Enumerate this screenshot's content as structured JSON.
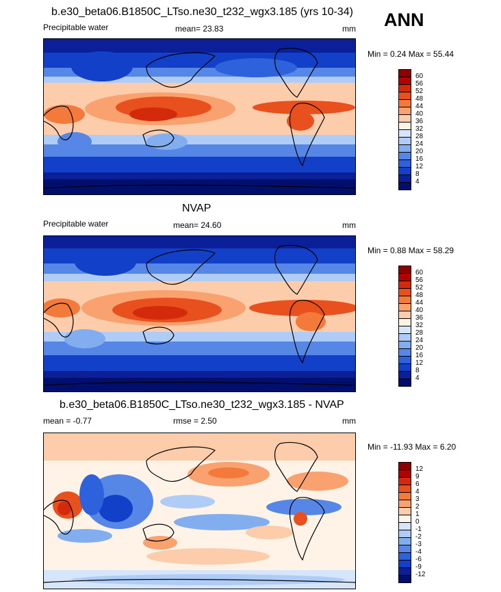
{
  "header": {
    "season_label": "ANN"
  },
  "panels": [
    {
      "id": "model",
      "title": "b.e30_beta06.B1850C_LTso.ne30_t232_wgx3.185 (yrs 10-34)",
      "variable": "Precipitable water",
      "stat_text": "mean=  23.83",
      "units": "mm",
      "minmax": "Min =   0.24 Max =  55.44",
      "colorbar": {
        "labels": [
          "60",
          "56",
          "52",
          "48",
          "44",
          "40",
          "36",
          "32",
          "28",
          "24",
          "20",
          "16",
          "12",
          "8",
          "4"
        ],
        "colors": [
          "#8c0000",
          "#b30000",
          "#d42a0c",
          "#e8501e",
          "#f47a3c",
          "#f9a270",
          "#fdccaa",
          "#fff3e8",
          "#d7e5fb",
          "#aeccf5",
          "#82aeef",
          "#5687e6",
          "#2d62dc",
          "#1340c8",
          "#0a1f98",
          "#000f6e"
        ]
      }
    },
    {
      "id": "obs",
      "title": "NVAP",
      "variable": "Precipitable water",
      "stat_text": "mean=  24.60",
      "units": "mm",
      "minmax": "Min =   0.88 Max =  58.29",
      "colorbar": {
        "labels": [
          "60",
          "56",
          "52",
          "48",
          "44",
          "40",
          "36",
          "32",
          "28",
          "24",
          "20",
          "16",
          "12",
          "8",
          "4"
        ],
        "colors": [
          "#8c0000",
          "#b30000",
          "#d42a0c",
          "#e8501e",
          "#f47a3c",
          "#f9a270",
          "#fdccaa",
          "#fff3e8",
          "#d7e5fb",
          "#aeccf5",
          "#82aeef",
          "#5687e6",
          "#2d62dc",
          "#1340c8",
          "#0a1f98",
          "#000f6e"
        ]
      }
    },
    {
      "id": "diff",
      "title": "b.e30_beta06.B1850C_LTso.ne30_t232_wgx3.185 - NVAP",
      "stat_text": "mean =  -0.77",
      "rmse_text": "rmse =   2.50",
      "units": "mm",
      "minmax": "Min = -11.93 Max =   6.20",
      "colorbar": {
        "labels": [
          "12",
          "9",
          "6",
          "4",
          "3",
          "2",
          "1",
          "0",
          "-1",
          "-2",
          "-3",
          "-4",
          "-6",
          "-9",
          "-12"
        ],
        "colors": [
          "#8c0000",
          "#b30000",
          "#d42a0c",
          "#e8501e",
          "#f47a3c",
          "#f9a270",
          "#fdccaa",
          "#fff3e8",
          "#d7e5fb",
          "#aeccf5",
          "#82aeef",
          "#5687e6",
          "#2d62dc",
          "#1340c8",
          "#0a1f98",
          "#000f6e"
        ]
      }
    }
  ],
  "chart_data": [
    {
      "type": "heatmap",
      "title": "b.e30_beta06.B1850C_LTso.ne30_t232_wgx3.185 (yrs 10-34)",
      "variable": "Precipitable water",
      "units": "mm",
      "mean": 23.83,
      "min": 0.24,
      "max": 55.44,
      "contour_levels": [
        4,
        8,
        12,
        16,
        20,
        24,
        28,
        32,
        36,
        40,
        44,
        48,
        52,
        56,
        60
      ]
    },
    {
      "type": "heatmap",
      "title": "NVAP",
      "variable": "Precipitable water",
      "units": "mm",
      "mean": 24.6,
      "min": 0.88,
      "max": 58.29,
      "contour_levels": [
        4,
        8,
        12,
        16,
        20,
        24,
        28,
        32,
        36,
        40,
        44,
        48,
        52,
        56,
        60
      ]
    },
    {
      "type": "heatmap",
      "title": "b.e30_beta06.B1850C_LTso.ne30_t232_wgx3.185 - NVAP",
      "units": "mm",
      "mean": -0.77,
      "rmse": 2.5,
      "min": -11.93,
      "max": 6.2,
      "contour_levels": [
        -12,
        -9,
        -6,
        -4,
        -3,
        -2,
        -1,
        0,
        1,
        2,
        3,
        4,
        6,
        9,
        12
      ]
    }
  ]
}
